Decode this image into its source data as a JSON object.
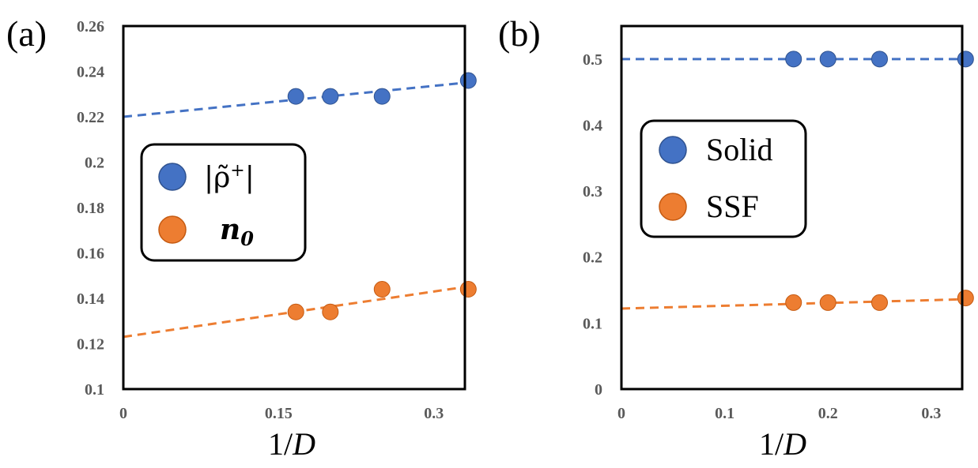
{
  "chart_data": [
    {
      "type": "scatter",
      "panel_label": "(a)",
      "xlabel_prefix": "1/",
      "xlabel_var": "D",
      "xlim": [
        0,
        0.33
      ],
      "ylim": [
        0.1,
        0.26
      ],
      "xticks": [
        "0",
        "0.15",
        "0.3"
      ],
      "xtick_values": [
        0,
        0.15,
        0.3
      ],
      "yticks": [
        "0.1",
        "0.12",
        "0.14",
        "0.16",
        "0.18",
        "0.2",
        "0.22",
        "0.24",
        "0.26"
      ],
      "ytick_values": [
        0.1,
        0.12,
        0.14,
        0.16,
        0.18,
        0.2,
        0.22,
        0.24,
        0.26
      ],
      "legend_position": "center-left",
      "series": [
        {
          "name": "|ρ̃⁺|",
          "legend_main": "|ρ̃",
          "legend_sup": "+",
          "legend_close": "|",
          "color": "#4472C4",
          "x": [
            0.1667,
            0.2,
            0.25,
            0.3333
          ],
          "y": [
            0.229,
            0.229,
            0.229,
            0.236
          ],
          "fit": {
            "x": [
              0,
              0.33
            ],
            "y": [
              0.22,
              0.235
            ]
          }
        },
        {
          "name": "n0",
          "legend_main": "n",
          "legend_sub": "0",
          "color": "#ED7D31",
          "x": [
            0.1667,
            0.2,
            0.25,
            0.3333
          ],
          "y": [
            0.134,
            0.134,
            0.144,
            0.144
          ],
          "fit": {
            "x": [
              0,
              0.33
            ],
            "y": [
              0.123,
              0.145
            ]
          }
        }
      ]
    },
    {
      "type": "scatter",
      "panel_label": "(b)",
      "xlabel_prefix": "1/",
      "xlabel_var": "D",
      "xlim": [
        0,
        0.33
      ],
      "ylim": [
        0,
        0.55
      ],
      "xticks": [
        "0",
        "0.1",
        "0.2",
        "0.3"
      ],
      "xtick_values": [
        0,
        0.1,
        0.2,
        0.3
      ],
      "yticks": [
        "0",
        "0.1",
        "0.2",
        "0.3",
        "0.4",
        "0.5"
      ],
      "ytick_values": [
        0,
        0.1,
        0.2,
        0.3,
        0.4,
        0.5
      ],
      "legend_position": "center-left",
      "series": [
        {
          "name": "Solid",
          "color": "#4472C4",
          "x": [
            0.1667,
            0.2,
            0.25,
            0.3333
          ],
          "y": [
            0.5,
            0.5,
            0.5,
            0.5
          ],
          "fit": {
            "x": [
              0,
              0.33
            ],
            "y": [
              0.5,
              0.5
            ]
          }
        },
        {
          "name": "SSF",
          "color": "#ED7D31",
          "x": [
            0.1667,
            0.2,
            0.25,
            0.3333
          ],
          "y": [
            0.131,
            0.131,
            0.131,
            0.138
          ],
          "fit": {
            "x": [
              0,
              0.33
            ],
            "y": [
              0.122,
              0.136
            ]
          }
        }
      ]
    }
  ]
}
